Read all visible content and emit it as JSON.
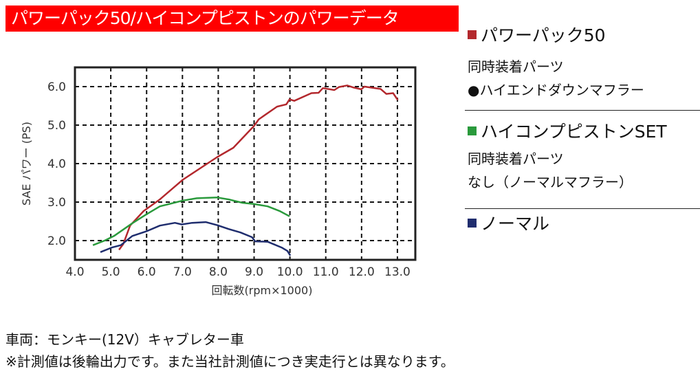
{
  "title": "パワーパック50/ハイコンプピストンのパワーデータ",
  "chart_data": {
    "type": "line",
    "xlabel": "回転数(rpm×1000)",
    "ylabel": "SAE パワー (PS)",
    "xlim": [
      4.0,
      13.5
    ],
    "ylim": [
      1.5,
      6.5
    ],
    "xticks": [
      "4.0",
      "5.0",
      "6.0",
      "7.0",
      "8.0",
      "9.0",
      "10.0",
      "11.0",
      "12.0",
      "13.0"
    ],
    "yticks": [
      "2.0",
      "3.0",
      "4.0",
      "5.0",
      "6.0"
    ],
    "grid": true,
    "series": [
      {
        "name": "パワーパック50",
        "color": "#b3282d",
        "x": [
          5.23,
          5.35,
          5.54,
          5.92,
          6.37,
          7.01,
          7.97,
          8.42,
          9.0,
          9.13,
          9.64,
          9.9,
          9.99,
          10.12,
          10.6,
          10.8,
          10.92,
          11.24,
          11.37,
          11.6,
          11.76,
          11.99,
          12.08,
          12.53,
          12.69,
          12.88,
          13.01
        ],
        "y": [
          1.76,
          1.91,
          2.39,
          2.77,
          3.07,
          3.58,
          4.17,
          4.41,
          4.98,
          5.15,
          5.48,
          5.54,
          5.67,
          5.63,
          5.83,
          5.84,
          5.96,
          5.91,
          5.99,
          6.03,
          5.98,
          5.93,
          6.0,
          5.94,
          5.81,
          5.83,
          5.65
        ]
      },
      {
        "name": "ハイコンプピストンSET",
        "color": "#2a9a3c",
        "x": [
          4.5,
          4.83,
          5.09,
          5.6,
          5.99,
          6.37,
          7.01,
          7.4,
          7.97,
          8.29,
          8.68,
          9.0,
          9.38,
          9.71,
          9.99
        ],
        "y": [
          1.88,
          2.0,
          2.12,
          2.45,
          2.68,
          2.89,
          3.04,
          3.1,
          3.12,
          3.07,
          2.98,
          2.95,
          2.89,
          2.77,
          2.63
        ]
      },
      {
        "name": "ノーマル",
        "color": "#1f2d6e",
        "x": [
          4.71,
          5.03,
          5.28,
          5.6,
          5.99,
          6.37,
          6.79,
          6.98,
          7.27,
          7.65,
          7.97,
          8.29,
          8.62,
          8.94,
          9.03,
          9.38,
          9.77,
          9.93,
          10.01
        ],
        "y": [
          1.7,
          1.82,
          1.88,
          2.12,
          2.24,
          2.39,
          2.46,
          2.42,
          2.46,
          2.48,
          2.4,
          2.3,
          2.21,
          2.09,
          1.98,
          1.97,
          1.82,
          1.73,
          1.61
        ]
      }
    ]
  },
  "legend": {
    "powerpack": {
      "label": "パワーパック50",
      "parts_title": "同時装着パーツ",
      "parts": "●ハイエンドダウンマフラー"
    },
    "hicomp": {
      "label": "ハイコンプピストンSET",
      "parts_title": "同時装着パーツ",
      "parts": "なし（ノーマルマフラー）"
    },
    "normal": {
      "label": "ノーマル"
    }
  },
  "notes": {
    "vehicle": "車両：モンキー(12V）キャブレター車",
    "disclaimer": "※計測値は後輪出力です。また当社計測値につき実走行とは異なります。"
  }
}
